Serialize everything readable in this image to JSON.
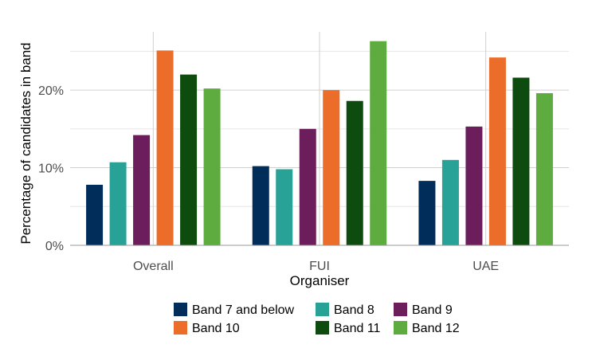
{
  "chart_data": {
    "type": "bar",
    "xlabel": "Organiser",
    "ylabel": "Percentage of candidates in band",
    "categories": [
      "Overall",
      "FUI",
      "UAE"
    ],
    "ylim": [
      0,
      27.5
    ],
    "yticks": [
      0,
      10,
      20
    ],
    "ytick_labels": [
      "0%",
      "10%",
      "20%"
    ],
    "grid": true,
    "legend_position": "bottom",
    "series": [
      {
        "name": "Band 7 and below",
        "color": "#012d5a",
        "values": [
          7.8,
          10.2,
          8.3
        ]
      },
      {
        "name": "Band 8",
        "color": "#28a197",
        "values": [
          10.7,
          9.8,
          11.0
        ]
      },
      {
        "name": "Band 9",
        "color": "#6b1d5c",
        "values": [
          14.2,
          15.0,
          15.3
        ]
      },
      {
        "name": "Band 10",
        "color": "#ec6c2a",
        "values": [
          25.1,
          20.0,
          24.2
        ]
      },
      {
        "name": "Band 11",
        "color": "#0d4c0e",
        "values": [
          22.0,
          18.6,
          21.6
        ]
      },
      {
        "name": "Band 12",
        "color": "#5eab3f",
        "values": [
          20.2,
          26.3,
          19.6
        ]
      }
    ]
  }
}
